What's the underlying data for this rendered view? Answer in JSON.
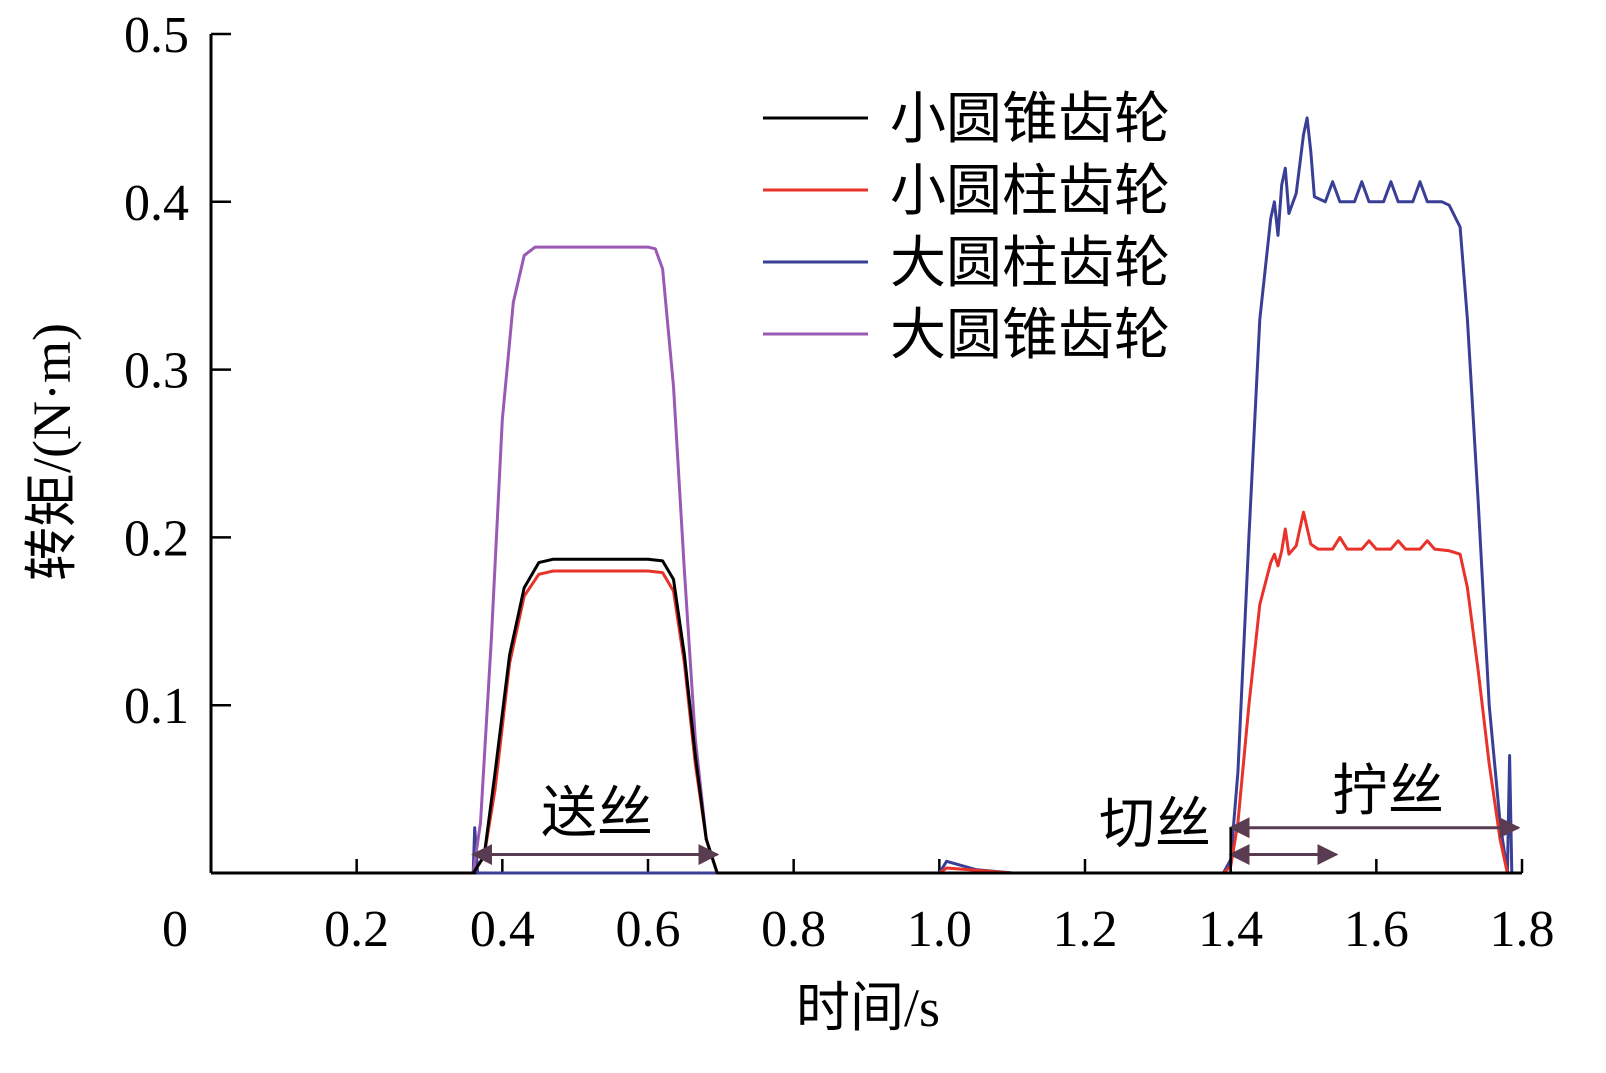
{
  "chart_data": {
    "type": "line",
    "title": "",
    "xlabel": "时间/s",
    "ylabel": "转矩/(N·m)",
    "xlim": [
      0,
      1.8
    ],
    "ylim": [
      0,
      0.5
    ],
    "xticks": [
      0,
      0.2,
      0.4,
      0.6,
      0.8,
      1.0,
      1.2,
      1.4,
      1.6,
      1.8
    ],
    "xtick_labels": [
      "0",
      "0.2",
      "0.4",
      "0.6",
      "0.8",
      "1.0",
      "1.2",
      "1.4",
      "1.6",
      "1.8"
    ],
    "yticks": [
      0.1,
      0.2,
      0.3,
      0.4,
      0.5
    ],
    "ytick_labels": [
      "0.1",
      "0.2",
      "0.3",
      "0.4",
      "0.5"
    ],
    "grid": false,
    "legend_position": "top-center",
    "series": [
      {
        "name": "小圆锥齿轮",
        "color": "#000000",
        "points": [
          [
            0,
            0
          ],
          [
            0.36,
            0
          ],
          [
            0.375,
            0.01
          ],
          [
            0.39,
            0.06
          ],
          [
            0.41,
            0.13
          ],
          [
            0.43,
            0.17
          ],
          [
            0.45,
            0.185
          ],
          [
            0.47,
            0.187
          ],
          [
            0.6,
            0.187
          ],
          [
            0.62,
            0.186
          ],
          [
            0.635,
            0.175
          ],
          [
            0.65,
            0.13
          ],
          [
            0.665,
            0.07
          ],
          [
            0.68,
            0.02
          ],
          [
            0.695,
            0
          ],
          [
            1.8,
            0
          ]
        ]
      },
      {
        "name": "小圆柱齿轮",
        "color": "#e8322a",
        "points": [
          [
            0,
            0
          ],
          [
            0.36,
            0
          ],
          [
            0.375,
            0.01
          ],
          [
            0.39,
            0.05
          ],
          [
            0.41,
            0.125
          ],
          [
            0.43,
            0.165
          ],
          [
            0.45,
            0.178
          ],
          [
            0.47,
            0.18
          ],
          [
            0.6,
            0.18
          ],
          [
            0.62,
            0.179
          ],
          [
            0.635,
            0.168
          ],
          [
            0.65,
            0.125
          ],
          [
            0.665,
            0.065
          ],
          [
            0.68,
            0.02
          ],
          [
            0.695,
            0
          ],
          [
            1.0,
            0
          ],
          [
            1.01,
            0.003
          ],
          [
            1.1,
            0
          ],
          [
            1.39,
            0
          ],
          [
            1.4,
            0.004
          ],
          [
            1.41,
            0.03
          ],
          [
            1.425,
            0.1
          ],
          [
            1.44,
            0.16
          ],
          [
            1.455,
            0.185
          ],
          [
            1.46,
            0.19
          ],
          [
            1.465,
            0.183
          ],
          [
            1.47,
            0.192
          ],
          [
            1.475,
            0.205
          ],
          [
            1.48,
            0.19
          ],
          [
            1.49,
            0.195
          ],
          [
            1.5,
            0.215
          ],
          [
            1.51,
            0.196
          ],
          [
            1.52,
            0.193
          ],
          [
            1.54,
            0.193
          ],
          [
            1.55,
            0.2
          ],
          [
            1.56,
            0.193
          ],
          [
            1.58,
            0.193
          ],
          [
            1.59,
            0.198
          ],
          [
            1.6,
            0.193
          ],
          [
            1.62,
            0.193
          ],
          [
            1.63,
            0.198
          ],
          [
            1.64,
            0.193
          ],
          [
            1.66,
            0.193
          ],
          [
            1.67,
            0.198
          ],
          [
            1.68,
            0.193
          ],
          [
            1.7,
            0.192
          ],
          [
            1.715,
            0.19
          ],
          [
            1.725,
            0.17
          ],
          [
            1.74,
            0.12
          ],
          [
            1.755,
            0.065
          ],
          [
            1.77,
            0.02
          ],
          [
            1.78,
            0
          ],
          [
            1.8,
            0
          ]
        ]
      },
      {
        "name": "大圆柱齿轮",
        "color": "#3a3f96",
        "points": [
          [
            0,
            0
          ],
          [
            0.36,
            0
          ],
          [
            0.362,
            0.027
          ],
          [
            0.366,
            0
          ],
          [
            1.0,
            0
          ],
          [
            1.01,
            0.007
          ],
          [
            1.05,
            0.002
          ],
          [
            1.1,
            0
          ],
          [
            1.39,
            0
          ],
          [
            1.4,
            0.008
          ],
          [
            1.41,
            0.06
          ],
          [
            1.425,
            0.2
          ],
          [
            1.44,
            0.33
          ],
          [
            1.455,
            0.39
          ],
          [
            1.46,
            0.4
          ],
          [
            1.465,
            0.38
          ],
          [
            1.47,
            0.41
          ],
          [
            1.475,
            0.42
          ],
          [
            1.48,
            0.393
          ],
          [
            1.49,
            0.405
          ],
          [
            1.5,
            0.44
          ],
          [
            1.505,
            0.45
          ],
          [
            1.51,
            0.43
          ],
          [
            1.515,
            0.403
          ],
          [
            1.53,
            0.4
          ],
          [
            1.54,
            0.412
          ],
          [
            1.55,
            0.4
          ],
          [
            1.57,
            0.4
          ],
          [
            1.58,
            0.412
          ],
          [
            1.59,
            0.4
          ],
          [
            1.61,
            0.4
          ],
          [
            1.62,
            0.412
          ],
          [
            1.63,
            0.4
          ],
          [
            1.65,
            0.4
          ],
          [
            1.66,
            0.412
          ],
          [
            1.67,
            0.4
          ],
          [
            1.69,
            0.4
          ],
          [
            1.7,
            0.398
          ],
          [
            1.715,
            0.385
          ],
          [
            1.725,
            0.33
          ],
          [
            1.74,
            0.22
          ],
          [
            1.755,
            0.1
          ],
          [
            1.77,
            0.03
          ],
          [
            1.78,
            0
          ],
          [
            1.783,
            0.07
          ],
          [
            1.786,
            0
          ],
          [
            1.8,
            0
          ]
        ]
      },
      {
        "name": "大圆锥齿轮",
        "color": "#9b59b6",
        "points": [
          [
            0,
            0
          ],
          [
            0.36,
            0
          ],
          [
            0.37,
            0.03
          ],
          [
            0.385,
            0.14
          ],
          [
            0.4,
            0.27
          ],
          [
            0.415,
            0.34
          ],
          [
            0.43,
            0.368
          ],
          [
            0.445,
            0.373
          ],
          [
            0.6,
            0.373
          ],
          [
            0.61,
            0.372
          ],
          [
            0.62,
            0.36
          ],
          [
            0.635,
            0.29
          ],
          [
            0.65,
            0.18
          ],
          [
            0.665,
            0.08
          ],
          [
            0.68,
            0.02
          ],
          [
            0.695,
            0
          ],
          [
            1.8,
            0
          ]
        ]
      }
    ],
    "annotations": [
      {
        "text": "送丝",
        "x_start": 0.36,
        "x_end": 0.695,
        "arrow_y": 0.011
      },
      {
        "text": "切丝",
        "x_start": 1.4,
        "x_end": 1.545,
        "arrow_y": 0.011
      },
      {
        "text": "拧丝",
        "x_start": 1.4,
        "x_end": 1.795,
        "arrow_y": 0.027
      }
    ]
  }
}
